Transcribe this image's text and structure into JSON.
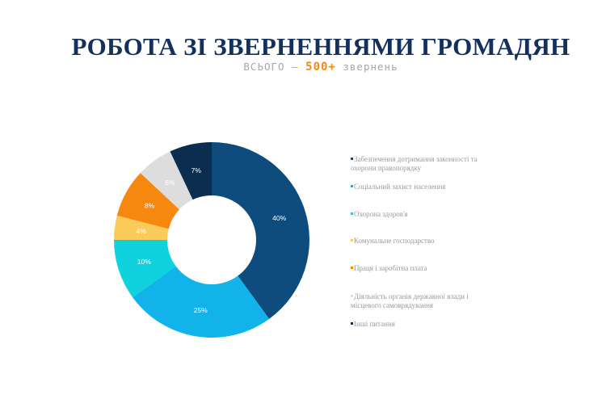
{
  "page": {
    "title": "РОБОТА ЗІ ЗВЕРНЕННЯМИ ГРОМАДЯН",
    "subtitle_prefix": "ВСЬОГО – ",
    "subtitle_highlight": "500+",
    "subtitle_suffix": " звернень"
  },
  "chart_data": {
    "type": "pie",
    "variant": "donut",
    "categories": [
      "Забезпечення дотримання законності та охорони правопорядку",
      "Соціальний захист населення",
      "Охорона здоров'я",
      "Комунальне господарство",
      "Праця і заробітна плата",
      "Діяльність органів державної влади і місцевого самоврядування",
      "Інші питання"
    ],
    "values": [
      40,
      25,
      10,
      4,
      8,
      6,
      7
    ],
    "labels": [
      "40%",
      "25%",
      "10%",
      "4%",
      "8%",
      "6%",
      "7%"
    ],
    "colors": [
      "#0e4c7e",
      "#12b2ea",
      "#10d2dc",
      "#fbcb5b",
      "#f7880f",
      "#dddddd",
      "#0b2d4f"
    ],
    "label_colors": [
      "#ffffff",
      "#ffffff",
      "#ffffff",
      "#ffffff",
      "#ffffff",
      "#ffffff",
      "#ffffff"
    ],
    "legend_placement": "right"
  }
}
